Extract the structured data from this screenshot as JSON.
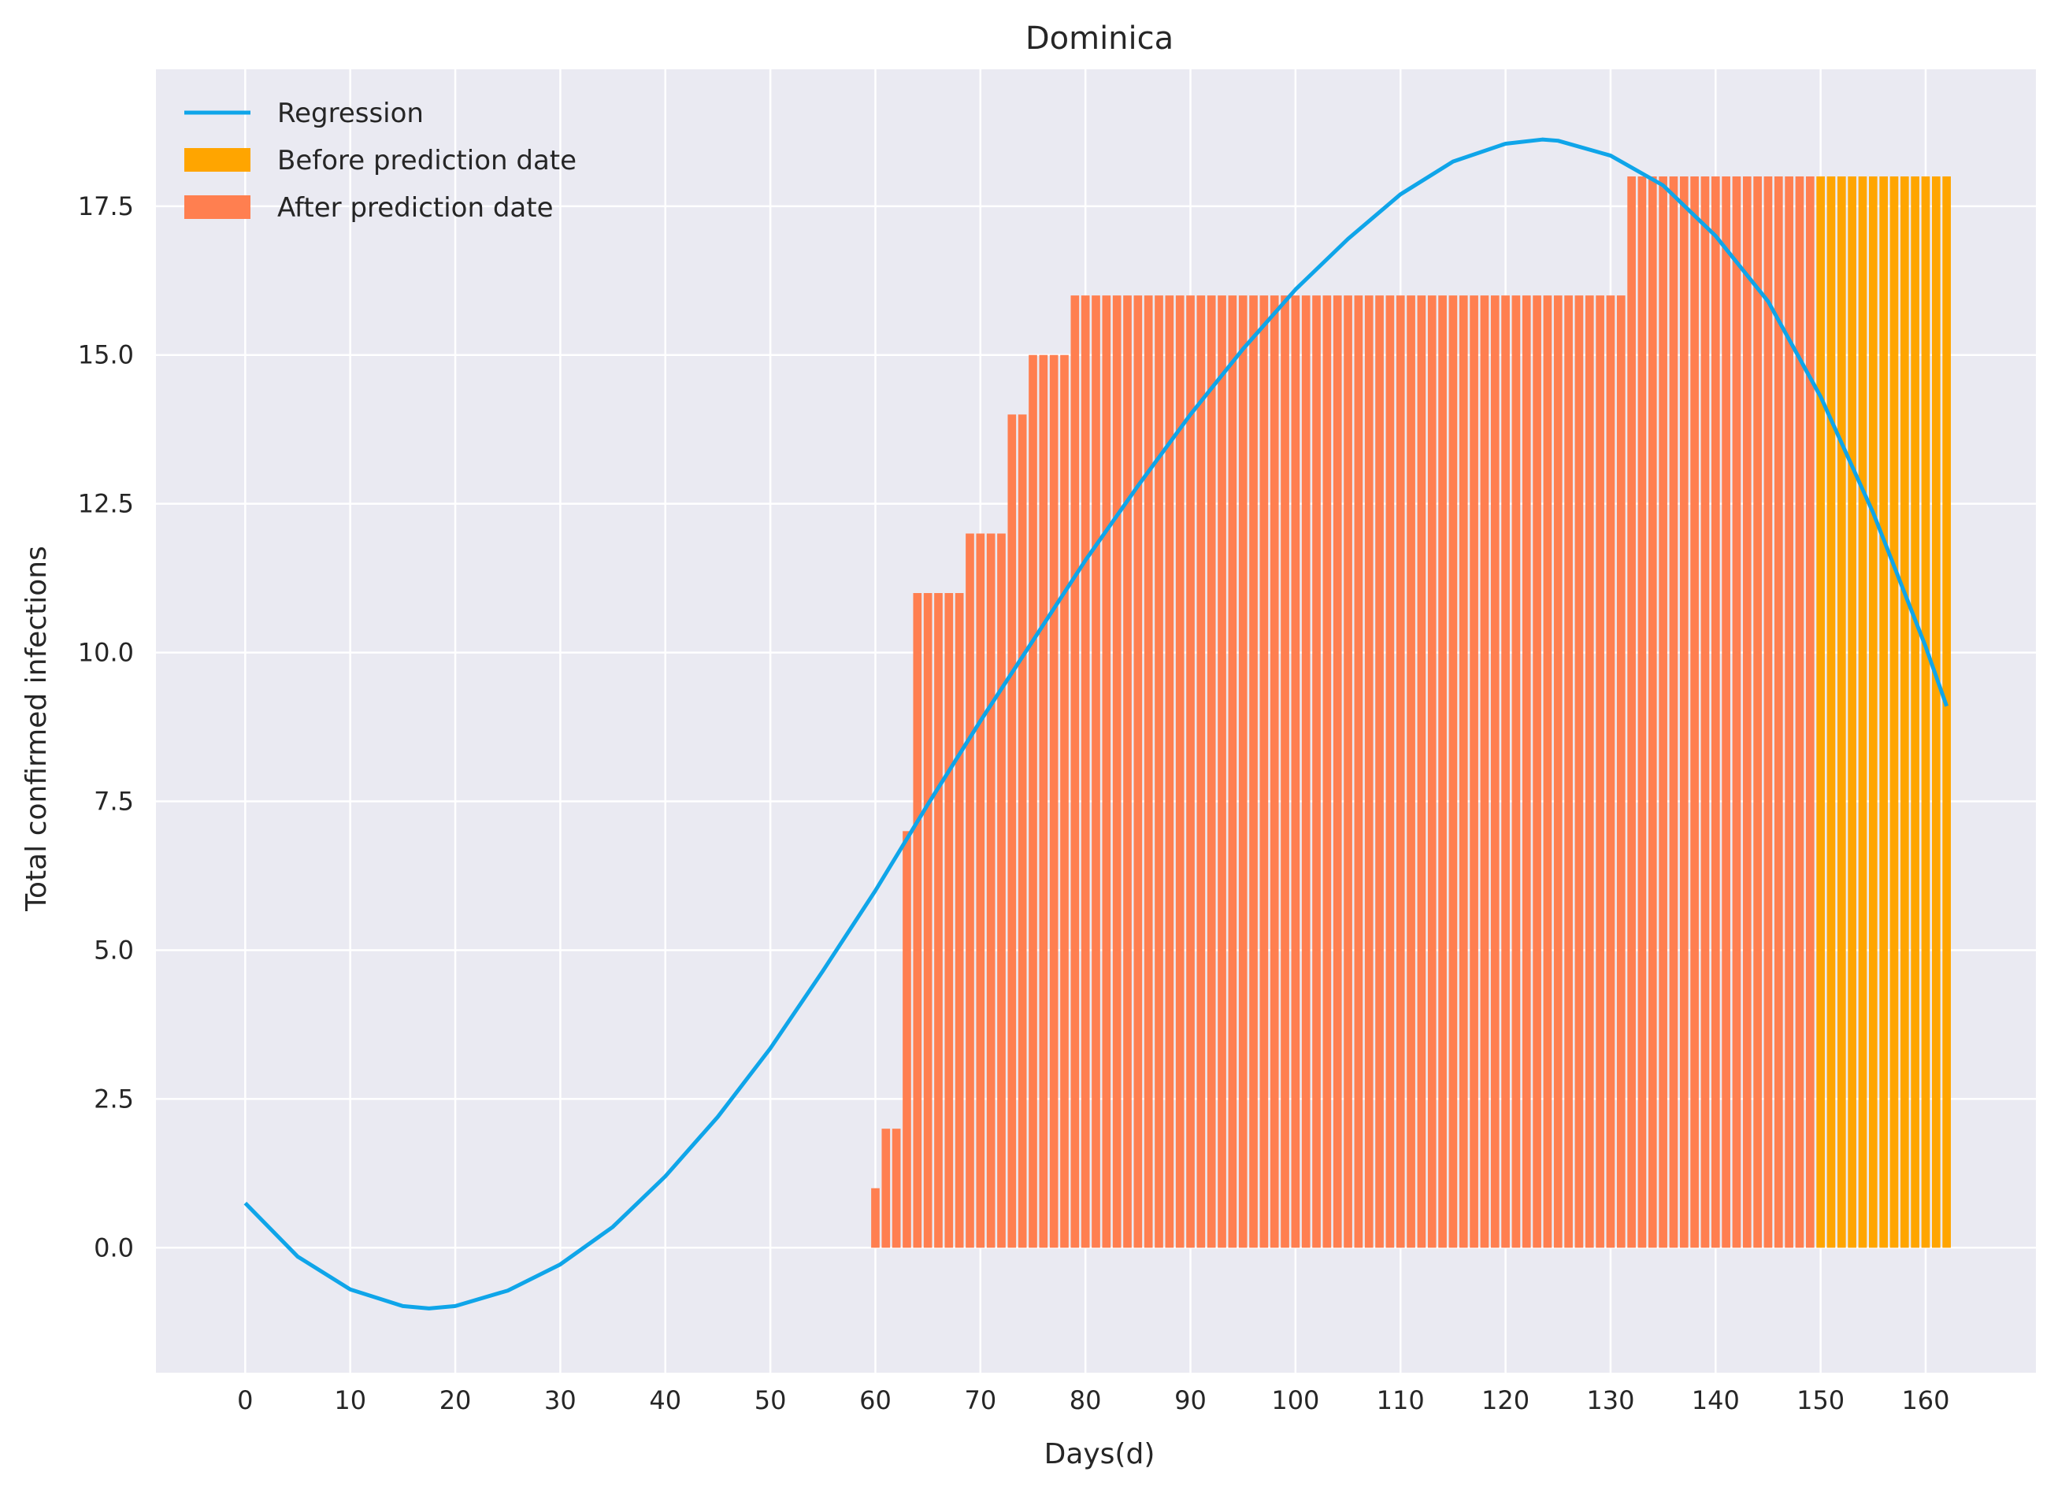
{
  "chart_data": {
    "type": "bar",
    "title": "Dominica",
    "xlabel": "Days(d)",
    "ylabel": "Total confirmed infections",
    "xlim": [
      -8.5,
      170.5
    ],
    "ylim": [
      -2.1,
      19.8
    ],
    "xticks": [
      0,
      10,
      20,
      30,
      40,
      50,
      60,
      70,
      80,
      90,
      100,
      110,
      120,
      130,
      140,
      150,
      160
    ],
    "yticks": [
      0.0,
      2.5,
      5.0,
      7.5,
      10.0,
      12.5,
      15.0,
      17.5
    ],
    "grid": true,
    "legend_position": "top-left",
    "background": "#eaeaf2",
    "colors": {
      "regression": "#0fa5e9",
      "before": "#ffa500",
      "after": "#ff7f50"
    },
    "legend": [
      "Regression",
      "Before prediction date",
      "After prediction date"
    ],
    "series": [
      {
        "name": "After prediction date",
        "type": "bar",
        "color": "#ff7f50",
        "runs": [
          {
            "from": 60,
            "to": 60,
            "value": 1
          },
          {
            "from": 61,
            "to": 62,
            "value": 2
          },
          {
            "from": 63,
            "to": 63,
            "value": 7
          },
          {
            "from": 64,
            "to": 68,
            "value": 11
          },
          {
            "from": 69,
            "to": 72,
            "value": 12
          },
          {
            "from": 73,
            "to": 74,
            "value": 14
          },
          {
            "from": 75,
            "to": 78,
            "value": 15
          },
          {
            "from": 79,
            "to": 131,
            "value": 16
          },
          {
            "from": 132,
            "to": 149,
            "value": 18
          }
        ]
      },
      {
        "name": "Before prediction date",
        "type": "bar",
        "color": "#ffa500",
        "runs": [
          {
            "from": 150,
            "to": 162,
            "value": 18
          }
        ]
      },
      {
        "name": "Regression",
        "type": "line",
        "color": "#0fa5e9",
        "x": [
          0,
          5,
          10,
          15,
          17.5,
          20,
          25,
          30,
          35,
          40,
          45,
          50,
          55,
          60,
          65,
          70,
          75,
          80,
          85,
          90,
          95,
          100,
          105,
          110,
          115,
          120,
          123.5,
          125,
          130,
          135,
          140,
          145,
          150,
          155,
          160,
          162
        ],
        "y": [
          0.75,
          -0.15,
          -0.7,
          -0.98,
          -1.02,
          -0.98,
          -0.72,
          -0.28,
          0.35,
          1.2,
          2.2,
          3.35,
          4.65,
          6.0,
          7.45,
          8.85,
          10.2,
          11.55,
          12.8,
          14.0,
          15.1,
          16.1,
          16.95,
          17.7,
          18.25,
          18.55,
          18.62,
          18.6,
          18.35,
          17.85,
          17.0,
          15.9,
          14.3,
          12.35,
          10.1,
          9.1
        ]
      }
    ]
  }
}
